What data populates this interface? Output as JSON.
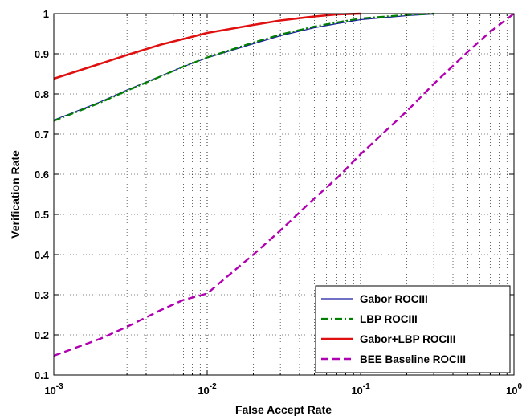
{
  "chart_data": {
    "type": "line",
    "xlabel": "False Accept Rate",
    "ylabel": "Verification Rate",
    "xscale": "log",
    "xlim": [
      0.001,
      1
    ],
    "ylim": [
      0.1,
      1
    ],
    "grid": true,
    "legend_position": "bottom-right",
    "x_ticks": [
      {
        "base": "10",
        "exp": "-3"
      },
      {
        "base": "10",
        "exp": "-2"
      },
      {
        "base": "10",
        "exp": "-1"
      },
      {
        "base": "10",
        "exp": "0"
      }
    ],
    "y_ticks": [
      "0.1",
      "0.2",
      "0.3",
      "0.4",
      "0.5",
      "0.6",
      "0.7",
      "0.8",
      "0.9",
      "1"
    ],
    "series": [
      {
        "name": "Gabor ROCIII",
        "color": "#1a1aa0",
        "style": "solid",
        "x": [
          0.001,
          0.002,
          0.003,
          0.005,
          0.007,
          0.01,
          0.02,
          0.03,
          0.05,
          0.07,
          0.1,
          0.2,
          0.3
        ],
        "y": [
          0.735,
          0.78,
          0.81,
          0.845,
          0.868,
          0.89,
          0.925,
          0.945,
          0.965,
          0.975,
          0.985,
          0.995,
          0.999
        ]
      },
      {
        "name": "LBP ROCIII",
        "color": "#008000",
        "style": "dashdot",
        "x": [
          0.001,
          0.002,
          0.003,
          0.005,
          0.007,
          0.01,
          0.02,
          0.03,
          0.05,
          0.07,
          0.1,
          0.2,
          0.3
        ],
        "y": [
          0.733,
          0.778,
          0.808,
          0.844,
          0.868,
          0.891,
          0.928,
          0.948,
          0.968,
          0.978,
          0.988,
          0.997,
          1.0
        ]
      },
      {
        "name": "Gabor+LBP ROCIII",
        "color": "#e01010",
        "style": "solid",
        "x": [
          0.001,
          0.002,
          0.003,
          0.005,
          0.007,
          0.01,
          0.02,
          0.03,
          0.05,
          0.07,
          0.1
        ],
        "y": [
          0.838,
          0.875,
          0.897,
          0.923,
          0.937,
          0.952,
          0.972,
          0.983,
          0.993,
          0.998,
          1.0
        ]
      },
      {
        "name": "BEE Baseline ROCIII",
        "color": "#b000b0",
        "style": "dashed",
        "x": [
          0.001,
          0.002,
          0.003,
          0.005,
          0.007,
          0.01,
          0.02,
          0.03,
          0.05,
          0.07,
          0.1,
          0.2,
          0.3,
          0.5,
          0.7,
          1.0
        ],
        "y": [
          0.148,
          0.19,
          0.22,
          0.262,
          0.287,
          0.303,
          0.4,
          0.46,
          0.54,
          0.59,
          0.65,
          0.757,
          0.825,
          0.905,
          0.955,
          1.0
        ]
      }
    ]
  }
}
